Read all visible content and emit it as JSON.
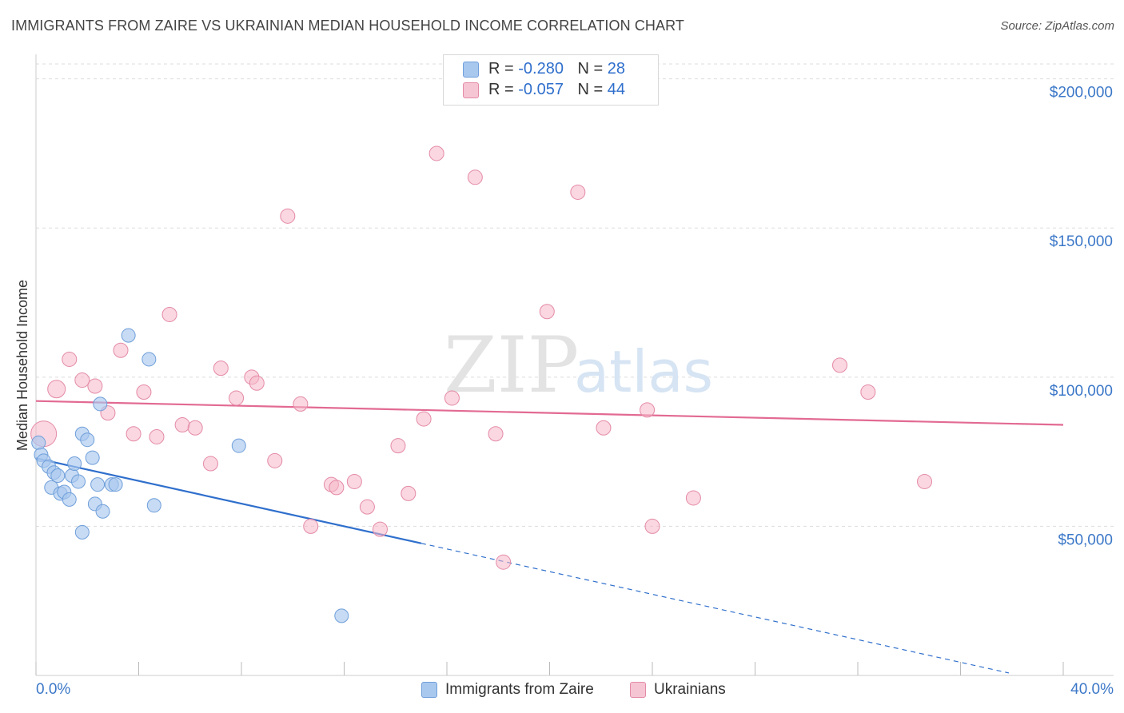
{
  "title": "IMMIGRANTS FROM ZAIRE VS UKRAINIAN MEDIAN HOUSEHOLD INCOME CORRELATION CHART",
  "source": "Source: ZipAtlas.com",
  "watermark": {
    "zip": "ZIP",
    "atlas": "atlas"
  },
  "legend": {
    "r_label": "R =",
    "n_label": "N =",
    "rows": [
      {
        "r": "-0.280",
        "n": "28"
      },
      {
        "r": "-0.057",
        "n": "44"
      }
    ]
  },
  "colors": {
    "series1_fill": "#a9c8ee",
    "series1_stroke": "#6f9fda",
    "series1_line": "#2f6fcc",
    "series2_fill": "#f6b6c9",
    "series2_stroke": "#e48aa6",
    "series2_line": "#e26a93",
    "axis_text": "#3c78c8",
    "grid": "#dddddd"
  },
  "chart_data": {
    "type": "scatter",
    "title": "IMMIGRANTS FROM ZAIRE VS UKRAINIAN MEDIAN HOUSEHOLD INCOME CORRELATION CHART",
    "xlabel": "",
    "ylabel": "Median Household Income",
    "xlim": [
      0,
      40
    ],
    "ylim": [
      0,
      205000
    ],
    "x_tick_labels": [
      "0.0%",
      "40.0%"
    ],
    "y_ticks": [
      50000,
      100000,
      150000,
      200000
    ],
    "y_tick_labels": [
      "$50,000",
      "$100,000",
      "$150,000",
      "$200,000"
    ],
    "grid": true,
    "legend_position": "bottom",
    "series": [
      {
        "name": "Immigrants from Zaire",
        "R": -0.28,
        "N": 28,
        "points": [
          {
            "x": 0.1,
            "y": 78000
          },
          {
            "x": 0.2,
            "y": 74000
          },
          {
            "x": 0.3,
            "y": 72000
          },
          {
            "x": 0.5,
            "y": 70000
          },
          {
            "x": 0.6,
            "y": 63000
          },
          {
            "x": 0.7,
            "y": 68000
          },
          {
            "x": 0.85,
            "y": 67000
          },
          {
            "x": 0.95,
            "y": 61000
          },
          {
            "x": 1.1,
            "y": 61500
          },
          {
            "x": 1.3,
            "y": 59000
          },
          {
            "x": 1.4,
            "y": 67000
          },
          {
            "x": 1.5,
            "y": 71000
          },
          {
            "x": 1.65,
            "y": 65000
          },
          {
            "x": 1.8,
            "y": 48000
          },
          {
            "x": 1.8,
            "y": 81000
          },
          {
            "x": 2.0,
            "y": 79000
          },
          {
            "x": 2.2,
            "y": 73000
          },
          {
            "x": 2.3,
            "y": 57500
          },
          {
            "x": 2.4,
            "y": 64000
          },
          {
            "x": 2.5,
            "y": 91000
          },
          {
            "x": 2.6,
            "y": 55000
          },
          {
            "x": 2.95,
            "y": 64000
          },
          {
            "x": 3.1,
            "y": 64000
          },
          {
            "x": 3.6,
            "y": 114000
          },
          {
            "x": 4.4,
            "y": 106000
          },
          {
            "x": 4.6,
            "y": 57000
          },
          {
            "x": 7.9,
            "y": 77000
          },
          {
            "x": 11.9,
            "y": 20000
          }
        ],
        "trend": {
          "x0": 0,
          "y0": 72800,
          "x1": 15,
          "y1": 44300,
          "dashed_to_x": 40,
          "dashed_to_y": -3500
        }
      },
      {
        "name": "Ukrainians",
        "R": -0.057,
        "N": 44,
        "points": [
          {
            "x": 0.3,
            "y": 81000
          },
          {
            "x": 0.8,
            "y": 96000
          },
          {
            "x": 1.3,
            "y": 106000
          },
          {
            "x": 1.8,
            "y": 99000
          },
          {
            "x": 2.3,
            "y": 97000
          },
          {
            "x": 2.8,
            "y": 88000
          },
          {
            "x": 3.3,
            "y": 109000
          },
          {
            "x": 3.8,
            "y": 81000
          },
          {
            "x": 4.2,
            "y": 95000
          },
          {
            "x": 4.7,
            "y": 80000
          },
          {
            "x": 5.2,
            "y": 121000
          },
          {
            "x": 5.7,
            "y": 84000
          },
          {
            "x": 6.2,
            "y": 83000
          },
          {
            "x": 6.8,
            "y": 71000
          },
          {
            "x": 7.2,
            "y": 103000
          },
          {
            "x": 7.8,
            "y": 93000
          },
          {
            "x": 8.4,
            "y": 100000
          },
          {
            "x": 8.6,
            "y": 98000
          },
          {
            "x": 9.3,
            "y": 72000
          },
          {
            "x": 9.8,
            "y": 154000
          },
          {
            "x": 10.3,
            "y": 91000
          },
          {
            "x": 10.7,
            "y": 50000
          },
          {
            "x": 11.5,
            "y": 64000
          },
          {
            "x": 11.7,
            "y": 63000
          },
          {
            "x": 12.4,
            "y": 65000
          },
          {
            "x": 12.9,
            "y": 56500
          },
          {
            "x": 13.4,
            "y": 49000
          },
          {
            "x": 14.1,
            "y": 77000
          },
          {
            "x": 14.5,
            "y": 61000
          },
          {
            "x": 15.1,
            "y": 86000
          },
          {
            "x": 15.6,
            "y": 175000
          },
          {
            "x": 16.2,
            "y": 93000
          },
          {
            "x": 17.1,
            "y": 167000
          },
          {
            "x": 17.9,
            "y": 81000
          },
          {
            "x": 18.2,
            "y": 38000
          },
          {
            "x": 19.9,
            "y": 122000
          },
          {
            "x": 21.1,
            "y": 162000
          },
          {
            "x": 22.1,
            "y": 83000
          },
          {
            "x": 23.8,
            "y": 89000
          },
          {
            "x": 24.0,
            "y": 50000
          },
          {
            "x": 25.6,
            "y": 59500
          },
          {
            "x": 31.3,
            "y": 104000
          },
          {
            "x": 32.4,
            "y": 95000
          },
          {
            "x": 34.6,
            "y": 65000
          }
        ],
        "trend": {
          "x0": 0,
          "y0": 92000,
          "x1": 40,
          "y1": 84000
        }
      }
    ]
  }
}
